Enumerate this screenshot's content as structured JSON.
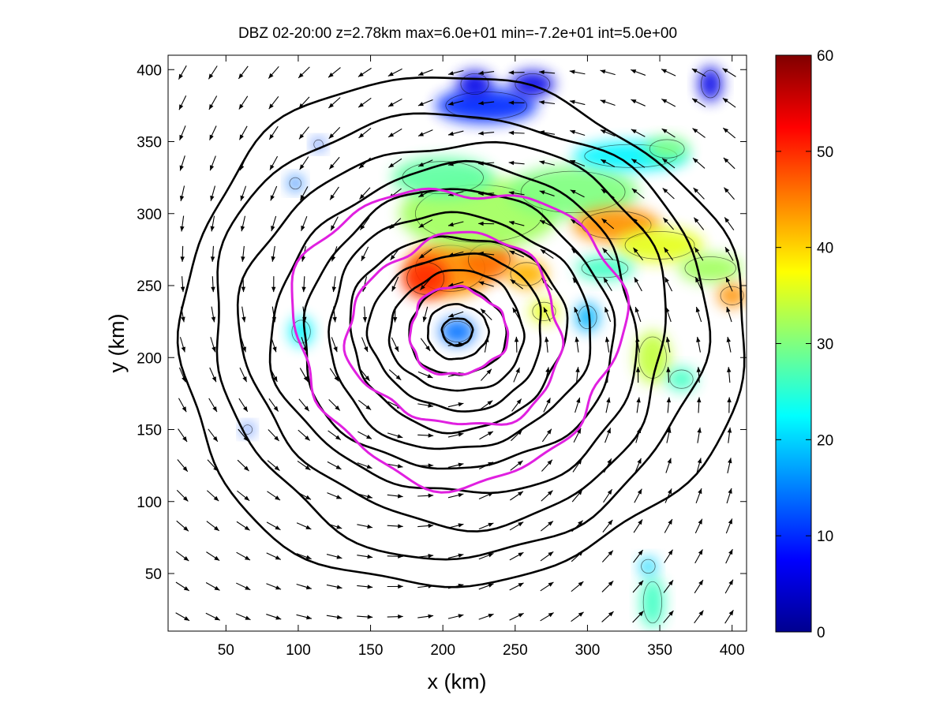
{
  "chart_data": {
    "type": "heatmap",
    "title": "DBZ 02-20:00 z=2.78km max=6.0e+01 min=-7.2e+01 int=5.0e+00",
    "xlabel": "x (km)",
    "ylabel": "y (km)",
    "xlim": [
      10,
      410
    ],
    "ylim": [
      10,
      410
    ],
    "x_ticks": [
      50,
      100,
      150,
      200,
      250,
      300,
      350,
      400
    ],
    "y_ticks": [
      50,
      100,
      150,
      200,
      250,
      300,
      350,
      400
    ],
    "colorbar": {
      "min": 0,
      "max": 60,
      "ticks": [
        0,
        10,
        20,
        30,
        40,
        50,
        60
      ],
      "colormap": "jet"
    },
    "vortex_center": [
      210,
      218
    ],
    "black_contour_radii_km": [
      10,
      20,
      32,
      44,
      57,
      71,
      86,
      102,
      120,
      140,
      162,
      186
    ],
    "magenta_contour_radii_km": [
      32,
      70,
      108
    ],
    "reflectivity_cells": [
      {
        "x": 205,
        "y": 262,
        "rx": 30,
        "ry": 20,
        "dbz": 44
      },
      {
        "x": 188,
        "y": 255,
        "rx": 16,
        "ry": 14,
        "dbz": 50
      },
      {
        "x": 232,
        "y": 268,
        "rx": 18,
        "ry": 14,
        "dbz": 46
      },
      {
        "x": 258,
        "y": 258,
        "rx": 14,
        "ry": 10,
        "dbz": 42
      },
      {
        "x": 225,
        "y": 300,
        "rx": 55,
        "ry": 25,
        "dbz": 32
      },
      {
        "x": 200,
        "y": 325,
        "rx": 35,
        "ry": 14,
        "dbz": 28
      },
      {
        "x": 290,
        "y": 315,
        "rx": 45,
        "ry": 18,
        "dbz": 30
      },
      {
        "x": 320,
        "y": 292,
        "rx": 30,
        "ry": 12,
        "dbz": 44
      },
      {
        "x": 350,
        "y": 278,
        "rx": 30,
        "ry": 12,
        "dbz": 36
      },
      {
        "x": 385,
        "y": 262,
        "rx": 22,
        "ry": 10,
        "dbz": 32
      },
      {
        "x": 400,
        "y": 243,
        "rx": 10,
        "ry": 8,
        "dbz": 44
      },
      {
        "x": 312,
        "y": 262,
        "rx": 20,
        "ry": 8,
        "dbz": 26
      },
      {
        "x": 210,
        "y": 218,
        "rx": 12,
        "ry": 9,
        "dbz": 14
      },
      {
        "x": 345,
        "y": 200,
        "rx": 12,
        "ry": 18,
        "dbz": 34
      },
      {
        "x": 365,
        "y": 185,
        "rx": 10,
        "ry": 8,
        "dbz": 26
      },
      {
        "x": 330,
        "y": 340,
        "rx": 40,
        "ry": 10,
        "dbz": 22
      },
      {
        "x": 355,
        "y": 345,
        "rx": 15,
        "ry": 8,
        "dbz": 30
      },
      {
        "x": 230,
        "y": 375,
        "rx": 35,
        "ry": 12,
        "dbz": 10
      },
      {
        "x": 262,
        "y": 390,
        "rx": 15,
        "ry": 9,
        "dbz": 6
      },
      {
        "x": 222,
        "y": 390,
        "rx": 12,
        "ry": 9,
        "dbz": 6
      },
      {
        "x": 385,
        "y": 390,
        "rx": 8,
        "ry": 12,
        "dbz": 6
      },
      {
        "x": 102,
        "y": 218,
        "rx": 8,
        "ry": 10,
        "dbz": 22
      },
      {
        "x": 98,
        "y": 321,
        "rx": 5,
        "ry": 5,
        "dbz": 14
      },
      {
        "x": 114,
        "y": 348,
        "rx": 4,
        "ry": 4,
        "dbz": 12
      },
      {
        "x": 345,
        "y": 30,
        "rx": 8,
        "ry": 18,
        "dbz": 26
      },
      {
        "x": 342,
        "y": 55,
        "rx": 6,
        "ry": 6,
        "dbz": 20
      },
      {
        "x": 300,
        "y": 228,
        "rx": 8,
        "ry": 10,
        "dbz": 18
      },
      {
        "x": 270,
        "y": 232,
        "rx": 10,
        "ry": 8,
        "dbz": 36
      },
      {
        "x": 65,
        "y": 150,
        "rx": 4,
        "ry": 4,
        "dbz": 12
      }
    ]
  }
}
